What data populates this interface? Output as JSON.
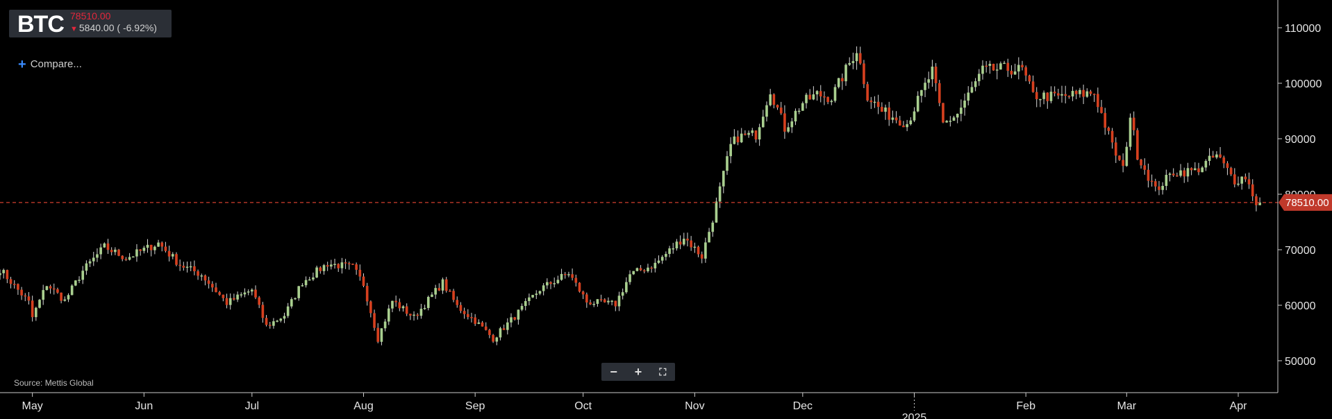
{
  "ticker": {
    "symbol": "BTC",
    "price": "78510.00",
    "change": "5840.00 ( -6.92%)",
    "change_arrow": "down-arrow-icon"
  },
  "compare_label": "Compare...",
  "source_label": "Source: Mettis Global",
  "zoom_controls": {
    "minus": "−",
    "plus": "+",
    "fit": "⛶"
  },
  "colors": {
    "up": "#a9cf8f",
    "down": "#d6401f",
    "price_line": "#c0392b",
    "axis": "#cccccc"
  },
  "chart_data": {
    "type": "candlestick",
    "y_ticks": [
      50000,
      60000,
      70000,
      80000,
      90000,
      100000,
      110000
    ],
    "ylim": [
      45000,
      114000
    ],
    "y_axis_position": "right",
    "grid": false,
    "current_price": 78510.0,
    "current_price_label": "78510.00",
    "x_labels": [
      "May",
      "Jun",
      "Jul",
      "Aug",
      "Sep",
      "Oct",
      "Nov",
      "Dec",
      "2025",
      "Feb",
      "Mar",
      "Apr"
    ],
    "x_label_dates": [
      "2024-05-01",
      "2024-06-01",
      "2024-07-01",
      "2024-08-01",
      "2024-09-01",
      "2024-10-01",
      "2024-11-01",
      "2024-12-01",
      "2025-01-01",
      "2025-02-01",
      "2025-03-01",
      "2025-04-01"
    ],
    "xlim": [
      "2024-04-22",
      "2025-04-12"
    ],
    "close_path": [
      [
        "2024-04-22",
        66500
      ],
      [
        "2024-04-30",
        60500
      ],
      [
        "2024-05-01",
        57800
      ],
      [
        "2024-05-05",
        63800
      ],
      [
        "2024-05-10",
        60800
      ],
      [
        "2024-05-15",
        66200
      ],
      [
        "2024-05-21",
        70500
      ],
      [
        "2024-05-27",
        68500
      ],
      [
        "2024-06-05",
        71200
      ],
      [
        "2024-06-11",
        67300
      ],
      [
        "2024-06-17",
        65500
      ],
      [
        "2024-06-24",
        60400
      ],
      [
        "2024-07-01",
        62800
      ],
      [
        "2024-07-05",
        56200
      ],
      [
        "2024-07-10",
        58200
      ],
      [
        "2024-07-15",
        64200
      ],
      [
        "2024-07-22",
        67500
      ],
      [
        "2024-07-29",
        66800
      ],
      [
        "2024-08-01",
        63800
      ],
      [
        "2024-08-05",
        54000
      ],
      [
        "2024-08-09",
        60800
      ],
      [
        "2024-08-15",
        57800
      ],
      [
        "2024-08-23",
        64100
      ],
      [
        "2024-08-27",
        59800
      ],
      [
        "2024-09-01",
        57200
      ],
      [
        "2024-09-06",
        54000
      ],
      [
        "2024-09-12",
        58000
      ],
      [
        "2024-09-19",
        62900
      ],
      [
        "2024-09-27",
        65800
      ],
      [
        "2024-10-02",
        60600
      ],
      [
        "2024-10-10",
        60200
      ],
      [
        "2024-10-14",
        65500
      ],
      [
        "2024-10-21",
        67400
      ],
      [
        "2024-10-29",
        72300
      ],
      [
        "2024-11-03",
        68800
      ],
      [
        "2024-11-06",
        75600
      ],
      [
        "2024-11-11",
        88700
      ],
      [
        "2024-11-13",
        90300
      ],
      [
        "2024-11-18",
        90800
      ],
      [
        "2024-11-22",
        98900
      ],
      [
        "2024-11-26",
        91900
      ],
      [
        "2024-12-01",
        96500
      ],
      [
        "2024-12-05",
        98000
      ],
      [
        "2024-12-09",
        97400
      ],
      [
        "2024-12-16",
        106100
      ],
      [
        "2024-12-19",
        97800
      ],
      [
        "2024-12-23",
        94900
      ],
      [
        "2024-12-30",
        92800
      ],
      [
        "2025-01-06",
        102200
      ],
      [
        "2025-01-09",
        92600
      ],
      [
        "2025-01-13",
        94500
      ],
      [
        "2025-01-20",
        102300
      ],
      [
        "2025-01-26",
        102600
      ],
      [
        "2025-01-31",
        102400
      ],
      [
        "2025-02-03",
        97800
      ],
      [
        "2025-02-10",
        97500
      ],
      [
        "2025-02-20",
        98300
      ],
      [
        "2025-02-25",
        88700
      ],
      [
        "2025-02-28",
        84400
      ],
      [
        "2025-03-02",
        94200
      ],
      [
        "2025-03-04",
        87200
      ],
      [
        "2025-03-09",
        80700
      ],
      [
        "2025-03-14",
        84000
      ],
      [
        "2025-03-20",
        84200
      ],
      [
        "2025-03-26",
        87000
      ],
      [
        "2025-03-31",
        82500
      ],
      [
        "2025-04-03",
        83200
      ],
      [
        "2025-04-06",
        78500
      ],
      [
        "2025-04-07",
        78510
      ]
    ]
  }
}
